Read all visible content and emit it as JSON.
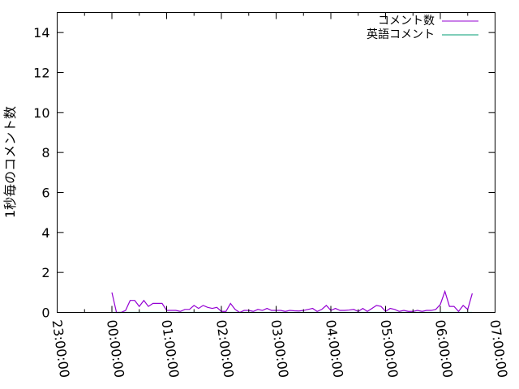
{
  "chart_data": {
    "type": "line",
    "title": "",
    "xlabel": "",
    "ylabel": "1秒毎のコメント数",
    "xlim": [
      "23:00:00",
      "07:00:00"
    ],
    "ylim": [
      0,
      15
    ],
    "grid": false,
    "legend_position": "top-right",
    "x_ticks": [
      "23:00:00",
      "00:00:00",
      "01:00:00",
      "02:00:00",
      "03:00:00",
      "04:00:00",
      "05:00:00",
      "06:00:00",
      "07:00:00"
    ],
    "y_ticks": [
      "0",
      "2",
      "4",
      "6",
      "8",
      "10",
      "12",
      "14"
    ],
    "x_start": "00:00:00",
    "x_step_minutes": 5,
    "series": [
      {
        "name": "コメント数",
        "color": "#9400d3",
        "values": [
          1.0,
          0,
          0,
          0.1,
          0.6,
          0.6,
          0.3,
          0.6,
          0.3,
          0.45,
          0.45,
          0.45,
          0.1,
          0.1,
          0.1,
          0.05,
          0.15,
          0.15,
          0.35,
          0.2,
          0.35,
          0.25,
          0.2,
          0.25,
          0.05,
          0.05,
          0.45,
          0.15,
          0,
          0.1,
          0.1,
          0.05,
          0.15,
          0.1,
          0.2,
          0.1,
          0.1,
          0.1,
          0.05,
          0.1,
          0.08,
          0.07,
          0.1,
          0.15,
          0.2,
          0.05,
          0.15,
          0.35,
          0.1,
          0.2,
          0.1,
          0.1,
          0.12,
          0.15,
          0.05,
          0.2,
          0.05,
          0.2,
          0.35,
          0.3,
          0.05,
          0.2,
          0.15,
          0.05,
          0.1,
          0.05,
          0.05,
          0.1,
          0.05,
          0.1,
          0.1,
          0.15,
          0.4,
          1.05,
          0.3,
          0.3,
          0.05,
          0.35,
          0.15,
          0.95
        ]
      },
      {
        "name": "英語コメント",
        "color": "#009e73",
        "values": [
          0,
          0,
          0,
          0,
          0,
          0,
          0,
          0,
          0,
          0,
          0,
          0,
          0,
          0,
          0,
          0,
          0,
          0,
          0,
          0,
          0,
          0,
          0,
          0,
          0,
          0,
          0,
          0,
          0,
          0,
          0,
          0,
          0,
          0,
          0,
          0,
          0,
          0,
          0,
          0,
          0,
          0,
          0,
          0,
          0,
          0,
          0,
          0,
          0,
          0,
          0,
          0,
          0,
          0,
          0,
          0,
          0,
          0,
          0,
          0,
          0,
          0,
          0,
          0,
          0,
          0,
          0,
          0,
          0,
          0,
          0,
          0,
          0,
          0,
          0,
          0,
          0,
          0,
          0,
          0
        ]
      }
    ]
  }
}
